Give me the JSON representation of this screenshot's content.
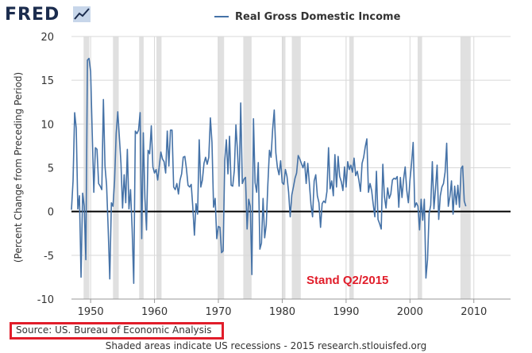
{
  "header": {
    "logo_text": "FRED",
    "logo_icon": "line-chart-icon",
    "legend_label": "Real Gross Domestic Income"
  },
  "annotation": {
    "text": "Stand Q2/2015",
    "color": "#e11d2a"
  },
  "source": {
    "text": "Source: US. Bureau of Economic Analysis",
    "highlight_color": "#e11d2a"
  },
  "footer": {
    "text": "Shaded areas indicate US recessions - 2015 research.stlouisfed.org"
  },
  "colors": {
    "series": "#4572a7",
    "recession_shade": "#e0e0e0",
    "zero_line": "#000000"
  },
  "chart_data": {
    "type": "line",
    "title": "",
    "xlabel": "",
    "ylabel": "(Percent Change from Preceding Period)",
    "xlim": [
      1947.0,
      2015.75
    ],
    "ylim": [
      -10,
      20
    ],
    "x_ticks": [
      1950,
      1960,
      1970,
      1980,
      1990,
      2000,
      2010
    ],
    "y_ticks": [
      -10,
      -5,
      0,
      5,
      10,
      15,
      20
    ],
    "grid": true,
    "legend": "top",
    "recessions": [
      [
        1948.9,
        1949.8
      ],
      [
        1953.5,
        1954.4
      ],
      [
        1957.6,
        1958.3
      ],
      [
        1960.3,
        1961.1
      ],
      [
        1969.9,
        1970.9
      ],
      [
        1973.9,
        1975.2
      ],
      [
        1980.0,
        1980.5
      ],
      [
        1981.5,
        1982.9
      ],
      [
        1990.5,
        1991.2
      ],
      [
        2001.2,
        2001.9
      ],
      [
        2007.9,
        2009.5
      ]
    ],
    "series": [
      {
        "name": "Real Gross Domestic Income",
        "x_start": 1947.0,
        "step": 0.25,
        "values": [
          0.2,
          3.5,
          11.3,
          9.5,
          0.3,
          1.8,
          -7.5,
          2.1,
          0.6,
          -5.5,
          17.3,
          17.5,
          16.0,
          9.0,
          2.2,
          7.3,
          7.1,
          3.2,
          2.9,
          2.5,
          12.8,
          5.2,
          3.0,
          -2.0,
          -7.7,
          1.0,
          0.6,
          3.5,
          8.9,
          11.4,
          8.5,
          5.5,
          0.4,
          4.2,
          1.0,
          7.1,
          0.3,
          2.5,
          -2.0,
          -8.2,
          9.2,
          8.9,
          9.3,
          11.3,
          -3.1,
          9.0,
          1.5,
          -2.1,
          7.0,
          6.6,
          9.8,
          5.1,
          4.4,
          4.8,
          3.6,
          5.2,
          6.8,
          6.0,
          5.7,
          4.4,
          9.2,
          5.2,
          9.3,
          9.3,
          2.8,
          2.5,
          3.2,
          2.0,
          3.6,
          4.3,
          6.2,
          6.3,
          4.9,
          3.0,
          2.8,
          3.1,
          0.5,
          -2.7,
          0.9,
          -0.3,
          8.2,
          2.8,
          3.6,
          5.5,
          6.2,
          5.4,
          6.2,
          10.7,
          7.9,
          0.5,
          1.5,
          -3.1,
          -1.7,
          -1.8,
          -4.7,
          -4.5,
          5.8,
          8.2,
          4.3,
          8.6,
          3.0,
          2.9,
          4.7,
          9.9,
          6.8,
          2.9,
          12.4,
          3.2,
          3.7,
          3.9,
          -2.0,
          1.4,
          0.6,
          -7.2,
          10.6,
          3.3,
          2.2,
          5.6,
          -4.3,
          -3.6,
          1.5,
          -3.0,
          -1.5,
          3.1,
          7.0,
          6.2,
          9.4,
          11.6,
          6.7,
          5.0,
          4.2,
          5.8,
          3.3,
          3.1,
          4.8,
          4.0,
          2.2,
          -0.6,
          1.9,
          2.8,
          3.8,
          4.4,
          6.4,
          6.0,
          5.5,
          5.0,
          5.7,
          3.2,
          5.5,
          3.2,
          0.8,
          -0.6,
          3.5,
          4.2,
          1.8,
          1.0,
          -1.8,
          0.9,
          1.2,
          1.0,
          2.3,
          7.3,
          2.6,
          3.5,
          1.8,
          6.5,
          2.8,
          6.3,
          4.0,
          3.4,
          2.4,
          5.1,
          2.8,
          5.7,
          4.8,
          5.3,
          4.5,
          6.1,
          4.1,
          4.6,
          3.6,
          2.3,
          5.5,
          6.2,
          7.4,
          8.3,
          2.2,
          3.2,
          2.4,
          0.8,
          -0.6,
          4.6,
          -0.9,
          -1.4,
          -2.0,
          5.4,
          1.7,
          0.4,
          2.7,
          1.5,
          2.0,
          3.6,
          3.8,
          3.7,
          4.0,
          0.5,
          3.9,
          1.6,
          3.7,
          5.1,
          2.4,
          1.0,
          3.6,
          5.5,
          7.9,
          0.5,
          1.0,
          0.6,
          -2.1,
          1.4,
          -1.0,
          1.4,
          -7.6,
          -5.5,
          -0.2,
          0.7,
          5.7,
          0.3,
          2.6,
          5.3,
          -0.9,
          1.8,
          2.8,
          3.2,
          4.5,
          7.8,
          0.6,
          1.7,
          3.5,
          -0.3,
          2.9,
          0.8,
          3.0,
          0.5,
          4.9,
          5.2,
          1.2,
          0.6
        ]
      }
    ]
  }
}
